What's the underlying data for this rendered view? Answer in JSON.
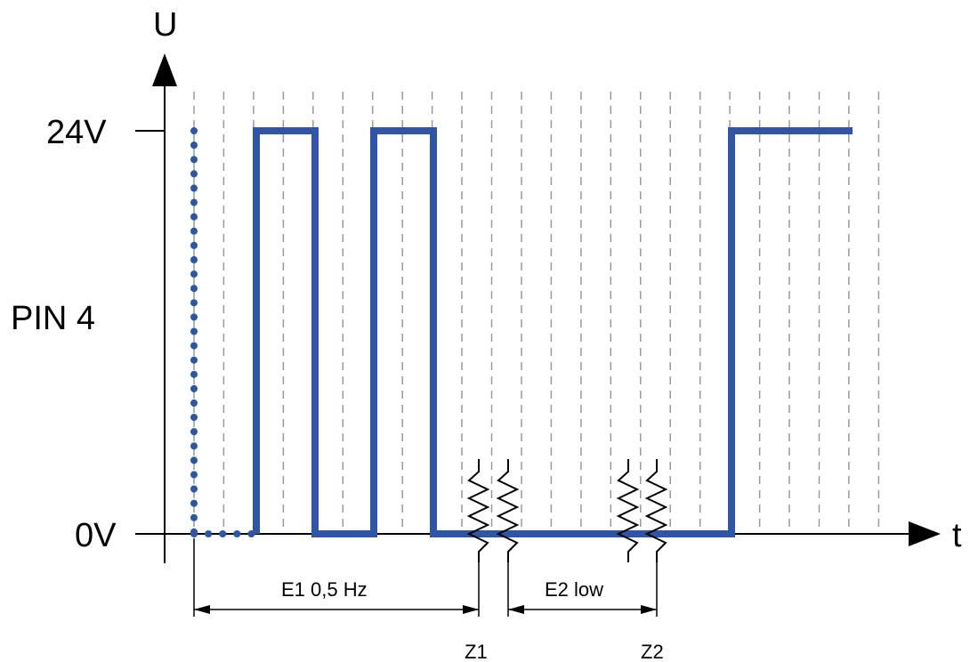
{
  "axes": {
    "y_label": "U",
    "x_label": "t",
    "y_high_label": "24V",
    "y_low_label": "0V"
  },
  "signal_label": "PIN 4",
  "segments": {
    "e1_label": "E1 0,5 Hz",
    "e2_label": "E2 low"
  },
  "markers": {
    "z1_label": "Z1",
    "z2_label": "Z2"
  },
  "colors": {
    "signal": "#2f55a4",
    "axis": "#000000",
    "grid": "#9a9a9a"
  }
}
